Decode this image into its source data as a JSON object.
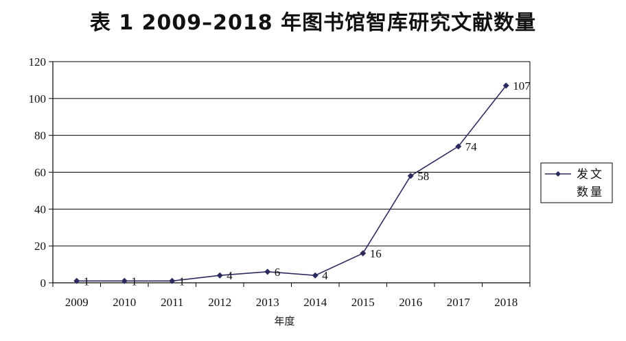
{
  "chart_data": {
    "type": "line",
    "title": "表 1   2009–2018 年图书馆智库研究文献数量",
    "xlabel": "年度",
    "ylabel": "",
    "categories": [
      "2009",
      "2010",
      "2011",
      "2012",
      "2013",
      "2014",
      "2015",
      "2016",
      "2017",
      "2018"
    ],
    "series": [
      {
        "name": "发文数量",
        "values": [
          1,
          1,
          1,
          4,
          6,
          4,
          16,
          58,
          74,
          107
        ],
        "data_labels": [
          "1",
          "1",
          "1",
          "4",
          "6",
          "4",
          "16",
          "58",
          "74",
          "107"
        ]
      }
    ],
    "ylim": [
      0,
      120
    ],
    "yticks": [
      0,
      20,
      40,
      60,
      80,
      100,
      120
    ],
    "ytick_labels": [
      "0",
      "20",
      "40",
      "60",
      "80",
      "100",
      "120"
    ],
    "grid": true,
    "legend_position": "right",
    "legend_lines": [
      "发文",
      "数量"
    ],
    "colors": {
      "series": "#2b2a5e",
      "grid": "#000000",
      "text": "#111111"
    }
  }
}
